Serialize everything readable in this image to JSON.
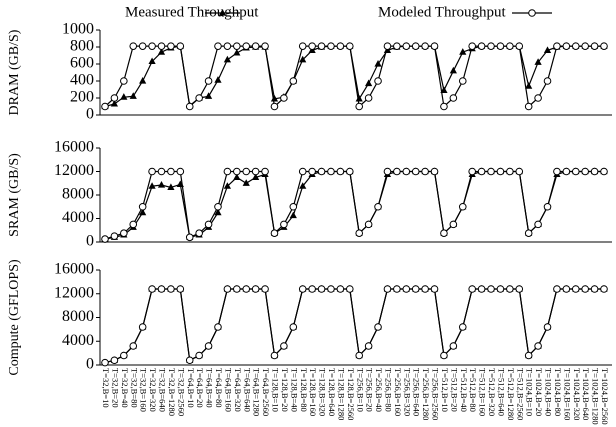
{
  "chart_data": [
    {
      "type": "line",
      "ylabel": "DRAM (GB/S)",
      "ylim": [
        0,
        1000
      ],
      "yticks": [
        0,
        200,
        400,
        600,
        800,
        1000
      ],
      "series": [
        {
          "name": "Measured Throughput",
          "color": "#000000",
          "marker": "triangle",
          "values": [
            100,
            130,
            210,
            220,
            400,
            630,
            740,
            790,
            810,
            110,
            200,
            220,
            410,
            650,
            730,
            790,
            800,
            800,
            190,
            210,
            400,
            650,
            760,
            800,
            810,
            810,
            810,
            190,
            370,
            600,
            760,
            800,
            810,
            810,
            810,
            810,
            290,
            520,
            740,
            780,
            810,
            810,
            810,
            810,
            810,
            340,
            620,
            760,
            800,
            810,
            810,
            810,
            810,
            810
          ]
        },
        {
          "name": "Modeled Throughput",
          "color": "#000000",
          "marker": "circle",
          "values": [
            100,
            200,
            400,
            810,
            810,
            810,
            810,
            810,
            810,
            100,
            200,
            400,
            810,
            810,
            810,
            810,
            810,
            810,
            100,
            200,
            400,
            810,
            810,
            810,
            810,
            810,
            810,
            100,
            200,
            400,
            810,
            810,
            810,
            810,
            810,
            810,
            100,
            200,
            400,
            810,
            810,
            810,
            810,
            810,
            810,
            100,
            200,
            400,
            810,
            810,
            810,
            810,
            810,
            810
          ]
        }
      ]
    },
    {
      "type": "line",
      "ylabel": "SRAM (GB/S)",
      "ylim": [
        0,
        16000
      ],
      "yticks": [
        0,
        4000,
        8000,
        12000,
        16000
      ],
      "series": [
        {
          "color": "#000000",
          "marker": "triangle",
          "values": [
            500,
            800,
            1200,
            2500,
            5000,
            9500,
            9700,
            9300,
            9800,
            800,
            1200,
            2500,
            5000,
            9500,
            11000,
            10000,
            11000,
            11500,
            1500,
            2500,
            4500,
            9500,
            11500,
            12000,
            12000,
            12000,
            12000,
            1500,
            3000,
            6000,
            11500,
            12000,
            12000,
            12000,
            12000,
            12000,
            1500,
            3000,
            6000,
            11500,
            12000,
            12000,
            12000,
            12000,
            12000,
            1500,
            3000,
            6000,
            11500,
            12000,
            12000,
            12000,
            12000,
            12000
          ]
        },
        {
          "color": "#000000",
          "marker": "circle",
          "values": [
            500,
            1000,
            1500,
            3000,
            6000,
            12000,
            12000,
            12000,
            12000,
            800,
            1500,
            3000,
            6000,
            12000,
            12000,
            12000,
            12000,
            12000,
            1500,
            3000,
            6000,
            12000,
            12000,
            12000,
            12000,
            12000,
            12000,
            1500,
            3000,
            6000,
            12000,
            12000,
            12000,
            12000,
            12000,
            12000,
            1500,
            3000,
            6000,
            12000,
            12000,
            12000,
            12000,
            12000,
            12000,
            1500,
            3000,
            6000,
            12000,
            12000,
            12000,
            12000,
            12000,
            12000
          ]
        }
      ]
    },
    {
      "type": "line",
      "ylabel": "Compute (GFLOPS)",
      "ylim": [
        0,
        16000
      ],
      "yticks": [
        0,
        4000,
        8000,
        12000,
        16000
      ],
      "categories": [
        "T=32,B=10",
        "T=32,B=20",
        "T=32,B=40",
        "T=32,B=80",
        "T=32,B=160",
        "T=32,B=320",
        "T=32,B=640",
        "T=32,B=1280",
        "T=32,B=2560",
        "T=64,B=10",
        "T=64,B=20",
        "T=64,B=40",
        "T=64,B=80",
        "T=64,B=160",
        "T=64,B=320",
        "T=64,B=640",
        "T=64,B=1280",
        "T=64,B=2560",
        "T=128,B=10",
        "T=128,B=20",
        "T=128,B=40",
        "T=128,B=80",
        "T=128,B=160",
        "T=128,B=320",
        "T=128,B=640",
        "T=128,B=1280",
        "T=128,B=2560",
        "T=256,B=10",
        "T=256,B=20",
        "T=256,B=40",
        "T=256,B=80",
        "T=256,B=160",
        "T=256,B=320",
        "T=256,B=640",
        "T=256,B=1280",
        "T=256,B=2560",
        "T=512,B=10",
        "T=512,B=20",
        "T=512,B=40",
        "T=512,B=80",
        "T=512,B=160",
        "T=512,B=320",
        "T=512,B=640",
        "T=512,B=1280",
        "T=512,B=2560",
        "T=1024,B=10",
        "T=1024,B=20",
        "T=1024,B=40",
        "T=1024,B=80",
        "T=1024,B=160",
        "T=1024,B=320",
        "T=1024,B=640",
        "T=1024,B=1280",
        "T=1024,B=2560"
      ],
      "series": [
        {
          "color": "#000000",
          "marker": "triangle",
          "values": [
            400,
            800,
            1600,
            3200,
            6400,
            12800,
            12800,
            12800,
            12800,
            800,
            1600,
            3200,
            6400,
            12800,
            12800,
            12800,
            12800,
            12800,
            1600,
            3200,
            6400,
            12800,
            12800,
            12800,
            12800,
            12800,
            12800,
            1600,
            3200,
            6400,
            12800,
            12800,
            12800,
            12800,
            12800,
            12800,
            1600,
            3200,
            6400,
            12800,
            12800,
            12800,
            12800,
            12800,
            12800,
            1600,
            3200,
            6400,
            12800,
            12800,
            12800,
            12800,
            12800,
            12800
          ]
        },
        {
          "color": "#000000",
          "marker": "circle",
          "values": [
            400,
            800,
            1600,
            3200,
            6400,
            12800,
            12800,
            12800,
            12800,
            800,
            1600,
            3200,
            6400,
            12800,
            12800,
            12800,
            12800,
            12800,
            1600,
            3200,
            6400,
            12800,
            12800,
            12800,
            12800,
            12800,
            12800,
            1600,
            3200,
            6400,
            12800,
            12800,
            12800,
            12800,
            12800,
            12800,
            1600,
            3200,
            6400,
            12800,
            12800,
            12800,
            12800,
            12800,
            12800,
            1600,
            3200,
            6400,
            12800,
            12800,
            12800,
            12800,
            12800,
            12800
          ]
        }
      ]
    }
  ]
}
